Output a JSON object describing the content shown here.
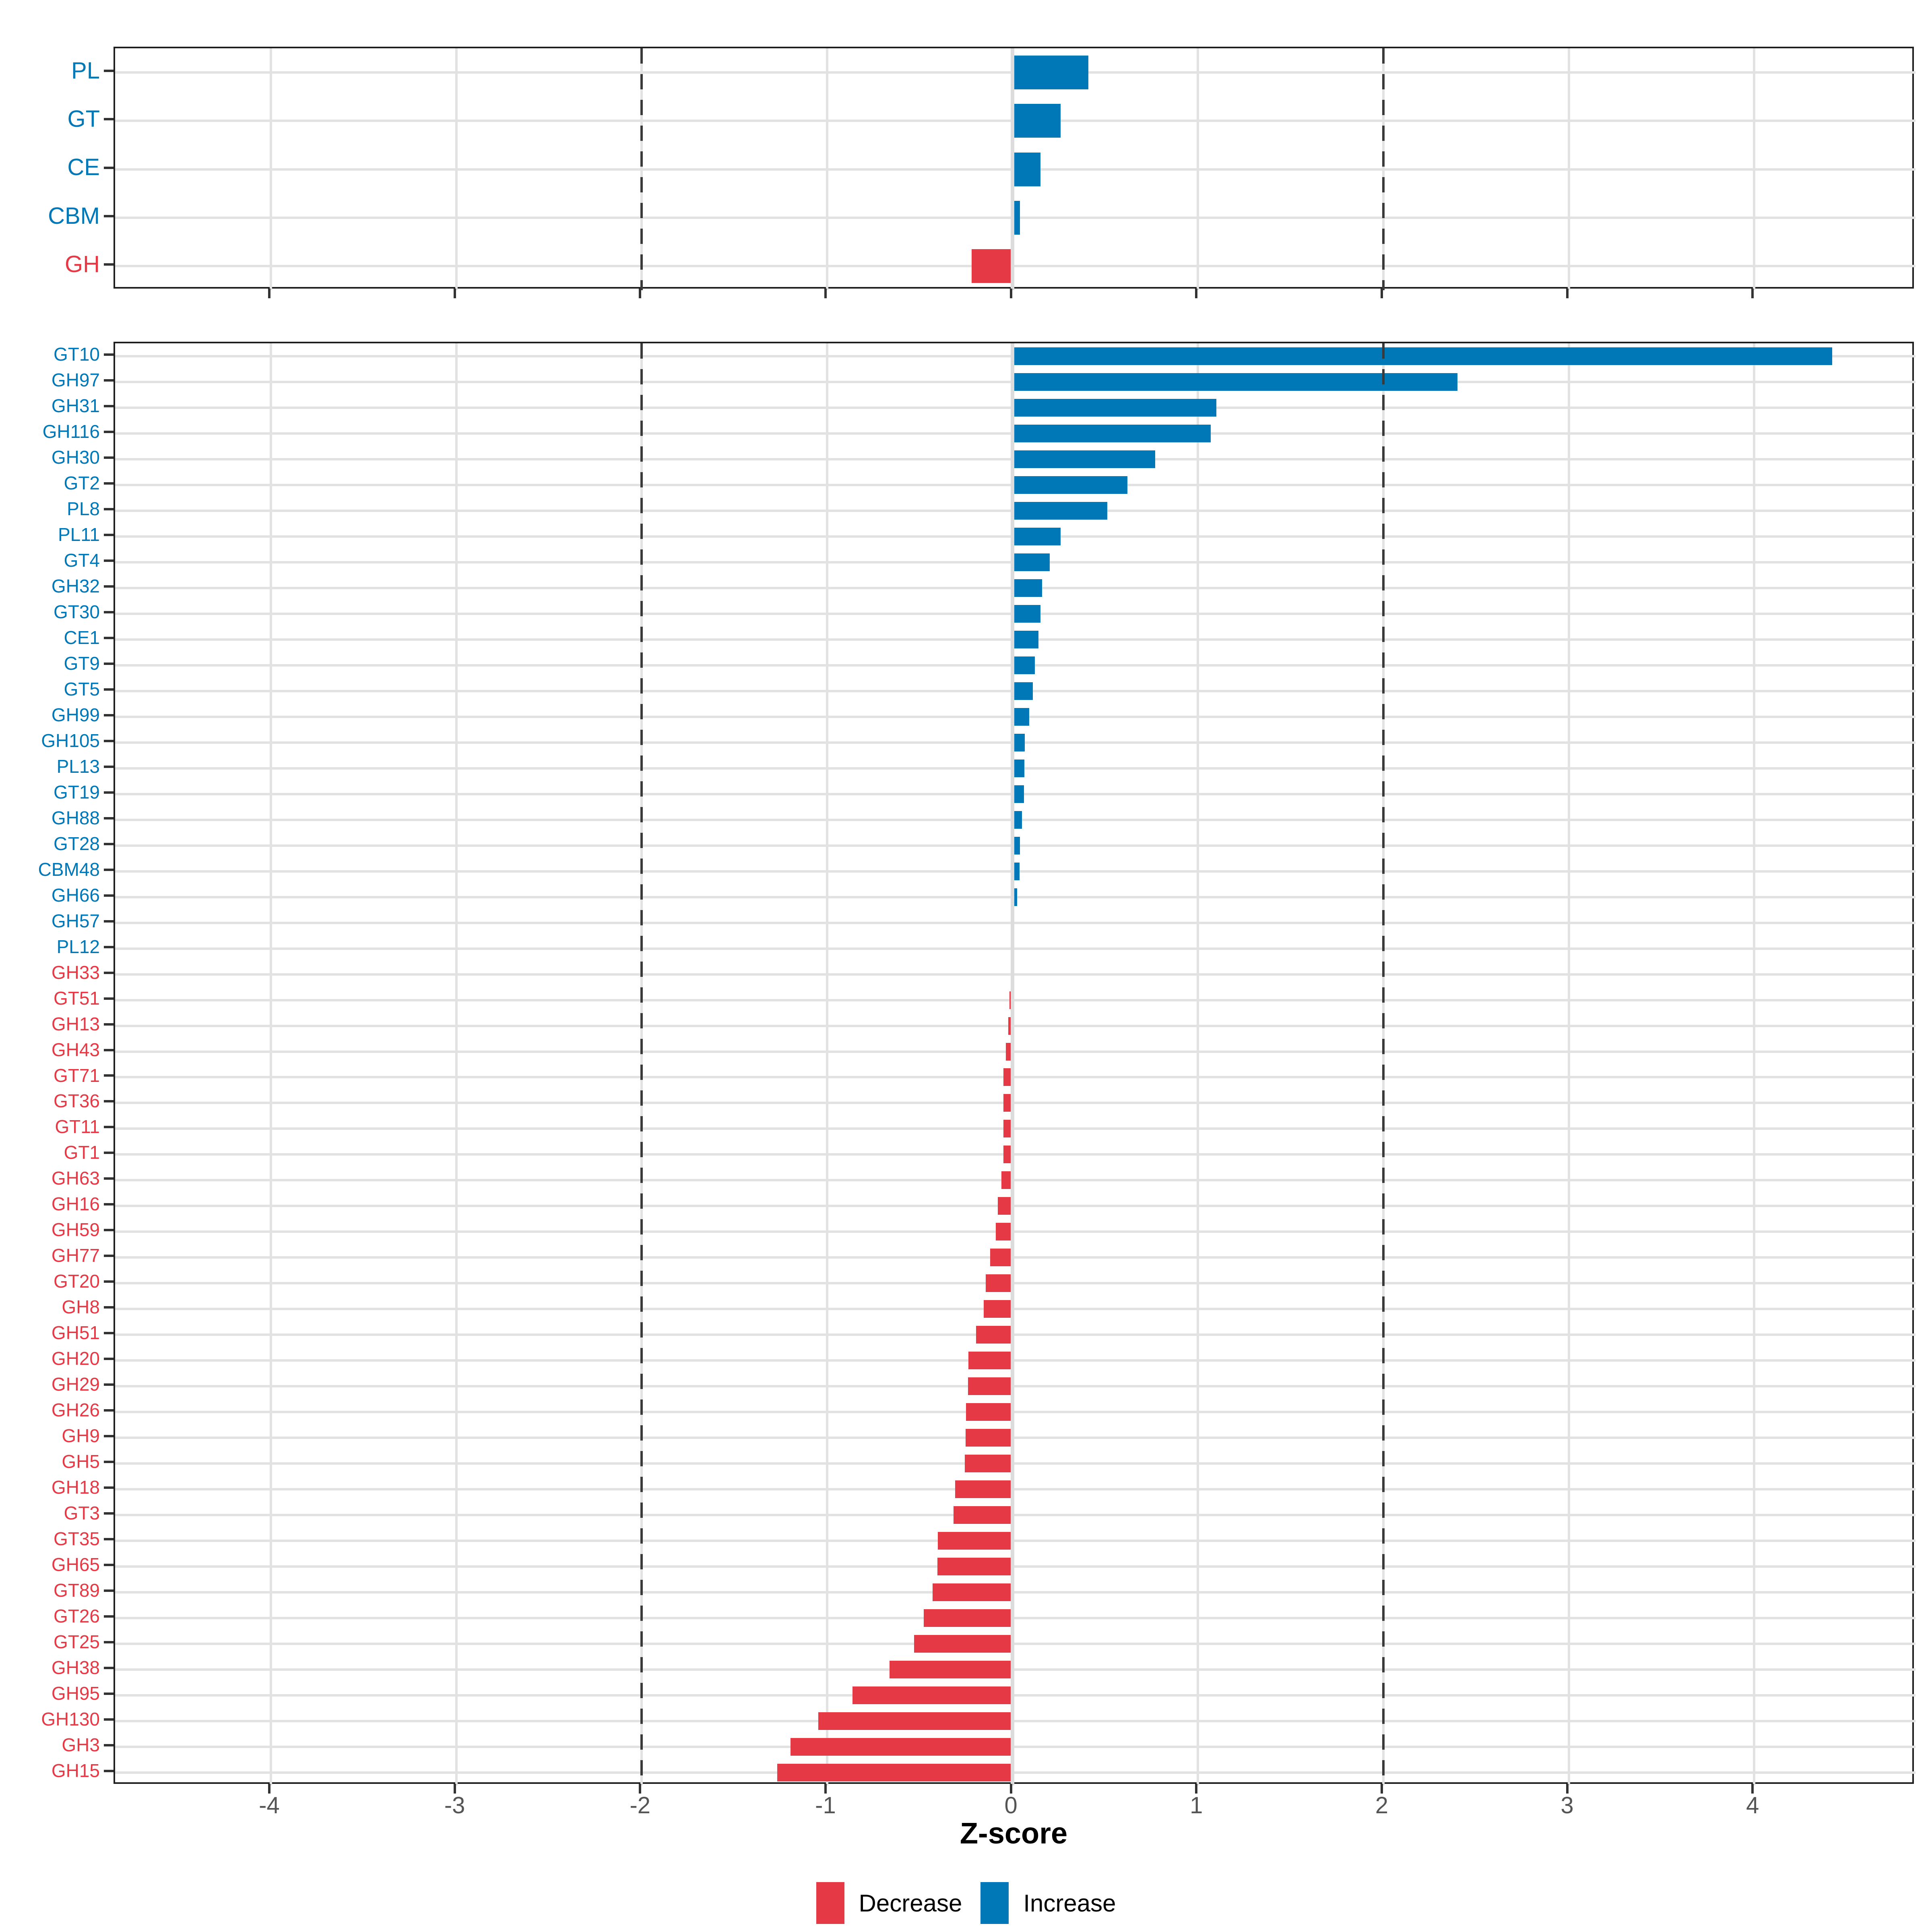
{
  "figure": {
    "background": "#ffffff"
  },
  "axis": {
    "label": "Z-score",
    "ticks": [
      -4,
      -3,
      -2,
      -1,
      0,
      1,
      2,
      3,
      4
    ],
    "range": [
      -4.84,
      4.87
    ],
    "dashed_guides": [
      -2,
      2
    ],
    "tick_label_color": "#555555"
  },
  "colors": {
    "increase": "#0077B6",
    "decrease": "#E63946",
    "gridline": "#E2E2E2",
    "zero_line": "#DCDCDC",
    "dashed_line": "#3A3A3A",
    "panel_border": "#1F1F1F",
    "axis_text": "#555555"
  },
  "legend": {
    "items": [
      {
        "label": "Decrease",
        "color": "#E63946"
      },
      {
        "label": "Increase",
        "color": "#0077B6"
      }
    ]
  },
  "chart_data": [
    {
      "type": "bar",
      "panel": "top",
      "orientation": "horizontal",
      "xlabel": "Z-score",
      "xlim": [
        -4.84,
        4.87
      ],
      "grid": true,
      "categories": [
        "PL",
        "GT",
        "CE",
        "CBM",
        "GH"
      ],
      "values": [
        0.41,
        0.26,
        0.15,
        0.04,
        -0.22
      ]
    },
    {
      "type": "bar",
      "panel": "bottom",
      "orientation": "horizontal",
      "xlabel": "Z-score",
      "xlim": [
        -4.84,
        4.87
      ],
      "grid": true,
      "categories": [
        "GT10",
        "GH97",
        "GH31",
        "GH116",
        "GH30",
        "GT2",
        "PL8",
        "PL11",
        "GT4",
        "GH32",
        "GT30",
        "CE1",
        "GT9",
        "GT5",
        "GH99",
        "GH105",
        "PL13",
        "GT19",
        "GH88",
        "GT28",
        "CBM48",
        "GH66",
        "GH57",
        "PL12",
        "GH33",
        "GT51",
        "GH13",
        "GH43",
        "GT71",
        "GT36",
        "GT11",
        "GT1",
        "GH63",
        "GH16",
        "GH59",
        "GH77",
        "GT20",
        "GH8",
        "GH51",
        "GH20",
        "GH29",
        "GH26",
        "GH9",
        "GH5",
        "GH18",
        "GT3",
        "GT35",
        "GH65",
        "GT89",
        "GT26",
        "GT25",
        "GH38",
        "GH95",
        "GH130",
        "GH3",
        "GH15"
      ],
      "values": [
        4.42,
        2.4,
        1.1,
        1.07,
        0.77,
        0.62,
        0.51,
        0.26,
        0.2,
        0.16,
        0.15,
        0.14,
        0.12,
        0.11,
        0.09,
        0.066,
        0.064,
        0.062,
        0.051,
        0.04,
        0.038,
        0.025,
        0.008,
        0.005,
        -0.004,
        -0.017,
        -0.022,
        -0.035,
        -0.048,
        -0.049,
        -0.05,
        -0.05,
        -0.06,
        -0.08,
        -0.091,
        -0.12,
        -0.145,
        -0.155,
        -0.197,
        -0.237,
        -0.24,
        -0.25,
        -0.253,
        -0.258,
        -0.31,
        -0.318,
        -0.402,
        -0.406,
        -0.432,
        -0.479,
        -0.53,
        -0.664,
        -0.864,
        -1.047,
        -1.198,
        -1.268
      ]
    }
  ]
}
